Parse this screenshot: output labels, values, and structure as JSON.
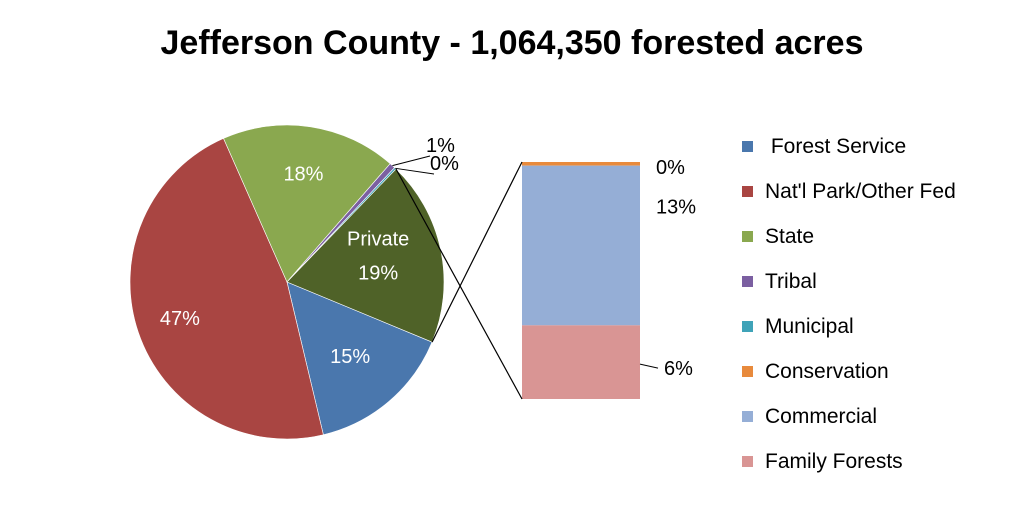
{
  "chart_data": {
    "type": "pie",
    "title": "Jefferson County - 1,064,350 forested acres",
    "slices": [
      {
        "name": "Forest Service",
        "value": 15,
        "label": "15%",
        "color": "#4a77ad"
      },
      {
        "name": "Nat'l Park/Other Fed",
        "value": 47,
        "label": "47%",
        "color": "#a94542"
      },
      {
        "name": "State",
        "value": 18,
        "label": "18%",
        "color": "#8aa84f"
      },
      {
        "name": "Tribal",
        "value": 0.6,
        "label": "1%",
        "color": "#7b5fa1"
      },
      {
        "name": "Municipal",
        "value": 0.2,
        "label": "0%",
        "color": "#3fa3b8"
      },
      {
        "name": "Private",
        "value": 19,
        "label": "19%",
        "name_label": "Private",
        "color": "#4f6228"
      }
    ],
    "breakout": {
      "of": "Private",
      "segments": [
        {
          "name": "Conservation",
          "value": 0.3,
          "label": "0%",
          "color": "#e88a3c"
        },
        {
          "name": "Commercial",
          "value": 13,
          "label": "13%",
          "color": "#95aed6"
        },
        {
          "name": "Family Forests",
          "value": 6,
          "label": "6%",
          "color": "#d99594"
        }
      ]
    },
    "legend": [
      {
        "label": " Forest Service",
        "color": "#4a77ad"
      },
      {
        "label": "Nat'l Park/Other Fed",
        "color": "#a94542"
      },
      {
        "label": "State",
        "color": "#8aa84f"
      },
      {
        "label": "Tribal",
        "color": "#7b5fa1"
      },
      {
        "label": "Municipal",
        "color": "#3fa3b8"
      },
      {
        "label": "Conservation",
        "color": "#e88a3c"
      },
      {
        "label": "Commercial",
        "color": "#95aed6"
      },
      {
        "label": "Family Forests",
        "color": "#d99594"
      }
    ],
    "legend_position": "right"
  }
}
